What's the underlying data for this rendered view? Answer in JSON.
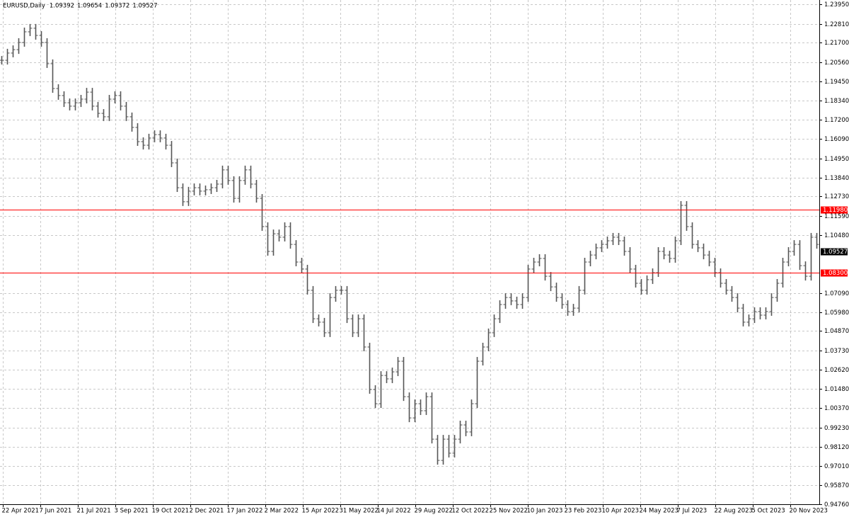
{
  "chart_data": {
    "type": "bar",
    "title": "EURUSD,Daily",
    "header_values": [
      1.09392,
      1.09654,
      1.09372,
      1.09527
    ],
    "color": "#555555",
    "grid": true,
    "values": [
      1.2068,
      1.211,
      1.213,
      1.2172,
      1.2234,
      1.2255,
      1.2213,
      1.2172,
      1.2048,
      1.1903,
      1.1862,
      1.182,
      1.18,
      1.182,
      1.1841,
      1.1882,
      1.18,
      1.1758,
      1.1738,
      1.1841,
      1.1862,
      1.18,
      1.1738,
      1.1676,
      1.1593,
      1.1572,
      1.1614,
      1.1634,
      1.1614,
      1.1572,
      1.1469,
      1.1324,
      1.1242,
      1.1304,
      1.1324,
      1.1304,
      1.1312,
      1.1324,
      1.1345,
      1.1428,
      1.1366,
      1.1262,
      1.1366,
      1.1428,
      1.1345,
      1.1262,
      1.1097,
      1.0952,
      1.1055,
      1.1035,
      1.1097,
      1.0993,
      1.089,
      1.0849,
      1.0725,
      1.0559,
      1.0539,
      1.0477,
      1.0683,
      1.0725,
      1.0725,
      1.0559,
      1.0477,
      1.0559,
      1.0394,
      1.0146,
      1.0063,
      1.0228,
      1.0208,
      1.0249,
      1.0311,
      1.0104,
      0.998,
      1.0063,
      1.0022,
      1.0104,
      0.9856,
      0.9732,
      0.9856,
      0.9774,
      0.9856,
      0.9939,
      0.9898,
      1.0063,
      1.0311,
      1.0394,
      1.0477,
      1.0559,
      1.0642,
      1.0683,
      1.0663,
      1.0642,
      1.0683,
      1.0849,
      1.089,
      1.0911,
      1.0807,
      1.0745,
      1.0683,
      1.0642,
      1.0601,
      1.0621,
      1.0725,
      1.089,
      1.0931,
      1.0973,
      1.0993,
      1.1014,
      1.1035,
      1.1014,
      1.0952,
      1.0849,
      1.0766,
      1.0725,
      1.0787,
      1.0828,
      1.0952,
      1.0931,
      1.0911,
      1.1014,
      1.1221,
      1.1097,
      1.0993,
      1.0973,
      1.0931,
      1.089,
      1.0828,
      1.0766,
      1.0725,
      1.0683,
      1.0621,
      1.0539,
      1.0559,
      1.0601,
      1.058,
      1.0601,
      1.0683,
      1.0766,
      1.089,
      1.0952,
      1.0993,
      1.0869,
      1.0807,
      1.1035,
      1.0993
    ],
    "xlim": [
      0,
      144.5
    ],
    "xticks": [
      {
        "value": 0.25,
        "label": "22 Apr 2021"
      },
      {
        "value": 6.875,
        "label": "7 Jun 2021"
      },
      {
        "value": 13.5,
        "label": "21 Jul 2021"
      },
      {
        "value": 20.125,
        "label": "3 Sep 2021"
      },
      {
        "value": 26.75,
        "label": "19 Oct 2021"
      },
      {
        "value": 33.375,
        "label": "2 Dec 2021"
      },
      {
        "value": 40,
        "label": "17 Jan 2022"
      },
      {
        "value": 46.625,
        "label": "2 Mar 2022"
      },
      {
        "value": 53.25,
        "label": "15 Apr 2022"
      },
      {
        "value": 59.875,
        "label": "31 May 2022"
      },
      {
        "value": 66.5,
        "label": "14 Jul 2022"
      },
      {
        "value": 73.125,
        "label": "29 Aug 2022"
      },
      {
        "value": 79.75,
        "label": "12 Oct 2022"
      },
      {
        "value": 86.375,
        "label": "25 Nov 2022"
      },
      {
        "value": 93,
        "label": "10 Jan 2023"
      },
      {
        "value": 99.625,
        "label": "23 Feb 2023"
      },
      {
        "value": 106.25,
        "label": "10 Apr 2023"
      },
      {
        "value": 112.875,
        "label": "24 May 2023"
      },
      {
        "value": 119.5,
        "label": "7 Jul 2023"
      },
      {
        "value": 126.125,
        "label": "22 Aug 2023"
      },
      {
        "value": 132.75,
        "label": "5 Oct 2023"
      },
      {
        "value": 139.375,
        "label": "20 Nov 2023"
      }
    ],
    "ylim": [
      0.9476,
      1.2395
    ],
    "yticks": [
      {
        "value": 1.2395,
        "label": "1.23950"
      },
      {
        "value": 1.2281,
        "label": "1.22810"
      },
      {
        "value": 1.217,
        "label": "1.21700"
      },
      {
        "value": 1.2056,
        "label": "1.20560"
      },
      {
        "value": 1.1945,
        "label": "1.19450"
      },
      {
        "value": 1.1834,
        "label": "1.18340"
      },
      {
        "value": 1.172,
        "label": "1.17200"
      },
      {
        "value": 1.1609,
        "label": "1.16090"
      },
      {
        "value": 1.1495,
        "label": "1.14950"
      },
      {
        "value": 1.1384,
        "label": "1.13840"
      },
      {
        "value": 1.1273,
        "label": "1.12730"
      },
      {
        "value": 1.1159,
        "label": "1.11590"
      },
      {
        "value": 1.1048,
        "label": "1.10480"
      },
      {
        "value": 1.0709,
        "label": "1.07090"
      },
      {
        "value": 1.0598,
        "label": "1.05980"
      },
      {
        "value": 1.0487,
        "label": "1.04870"
      },
      {
        "value": 1.0373,
        "label": "1.03730"
      },
      {
        "value": 1.0262,
        "label": "1.02620"
      },
      {
        "value": 1.0148,
        "label": "1.01480"
      },
      {
        "value": 1.0037,
        "label": "1.00370"
      },
      {
        "value": 0.9923,
        "label": "0.99230"
      },
      {
        "value": 0.9812,
        "label": "0.98120"
      },
      {
        "value": 0.9701,
        "label": "0.97010"
      },
      {
        "value": 0.9587,
        "label": "0.95870"
      },
      {
        "value": 0.9476,
        "label": "0.94760"
      }
    ],
    "levels": [
      {
        "value": 1.1198,
        "label": "1.11980",
        "color": "#ff0000"
      },
      {
        "value": 1.083,
        "label": "1.08300",
        "color": "#ff0000"
      }
    ],
    "price_marker": {
      "value": 1.09527,
      "label": "1.09527",
      "color": "#000000"
    }
  }
}
